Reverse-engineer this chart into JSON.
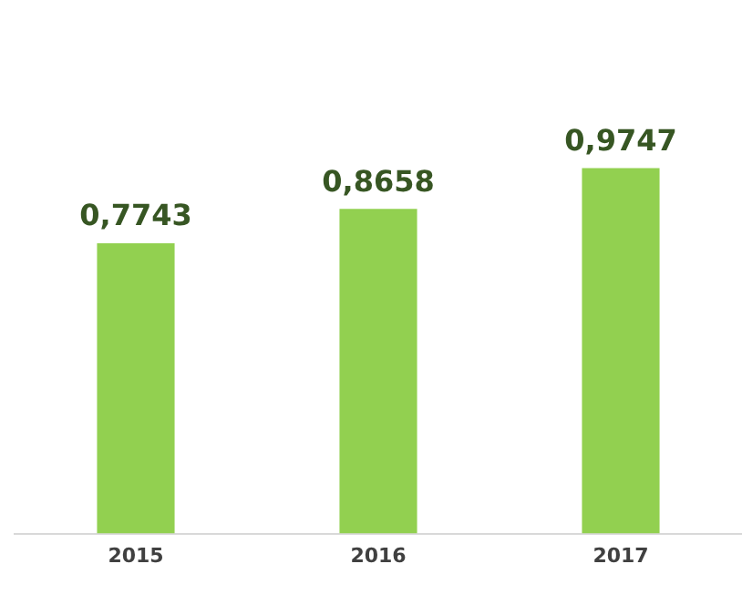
{
  "chart_data": {
    "type": "bar",
    "categories": [
      "2015",
      "2016",
      "2017"
    ],
    "values": [
      0.7743,
      0.8658,
      0.9747
    ],
    "value_labels": [
      "0,7743",
      "0,8658",
      "0,9747"
    ],
    "color": "#92d050",
    "tick_labels": "x",
    "grid": false,
    "legend": false
  }
}
